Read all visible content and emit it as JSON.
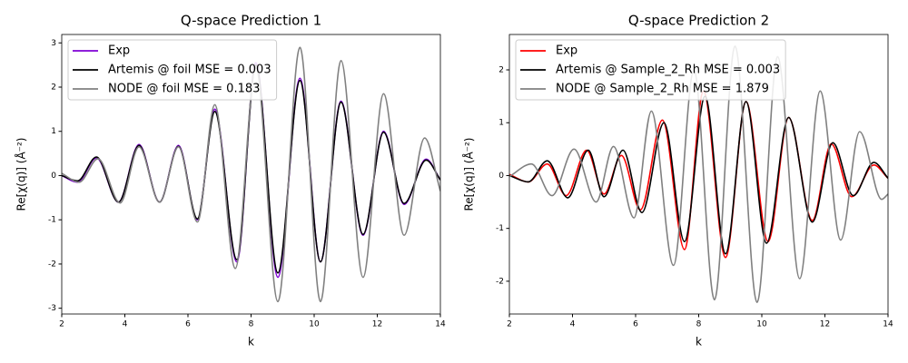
{
  "chart_data": [
    {
      "type": "line",
      "title": "Q-space Prediction 1",
      "x_label": "k",
      "y_label": "Re[χ(q)] (Å⁻²)",
      "xlim": [
        2,
        14
      ],
      "xticks": [
        2,
        4,
        6,
        8,
        10,
        12,
        14
      ],
      "ylim": [
        -3.13,
        3.19
      ],
      "yticks": [
        -3,
        -2,
        -1,
        0,
        1,
        2,
        3
      ],
      "legend": "upper left",
      "series": [
        {
          "name": "Exp",
          "color": "#7f00d4",
          "x": [
            2,
            2.5,
            3.1,
            3.8,
            4.45,
            5.1,
            5.7,
            6.3,
            6.85,
            7.55,
            8.15,
            8.85,
            9.55,
            10.2,
            10.85,
            11.55,
            12.2,
            12.85,
            13.55,
            14
          ],
          "values": [
            0,
            -0.15,
            0.4,
            -0.6,
            0.7,
            -0.6,
            0.68,
            -1.0,
            1.5,
            -1.95,
            2.55,
            -2.3,
            2.2,
            -1.95,
            1.68,
            -1.35,
            1.0,
            -0.65,
            0.37,
            -0.1
          ]
        },
        {
          "name": "Artemis @ foil MSE = 0.003",
          "color": "#000000",
          "x": [
            2,
            2.5,
            3.1,
            3.8,
            4.45,
            5.1,
            5.7,
            6.3,
            6.85,
            7.55,
            8.15,
            8.85,
            9.55,
            10.2,
            10.85,
            11.55,
            12.2,
            12.85,
            13.55,
            14
          ],
          "values": [
            0,
            -0.12,
            0.42,
            -0.6,
            0.68,
            -0.6,
            0.66,
            -0.98,
            1.45,
            -1.9,
            2.5,
            -2.2,
            2.15,
            -1.95,
            1.66,
            -1.33,
            0.98,
            -0.63,
            0.35,
            -0.1
          ]
        },
        {
          "name": "NODE @ foil MSE = 0.183",
          "color": "#808080",
          "x": [
            2,
            2.55,
            3.15,
            3.85,
            4.45,
            5.1,
            5.7,
            6.3,
            6.85,
            7.5,
            8.15,
            8.85,
            9.55,
            10.2,
            10.85,
            11.55,
            12.2,
            12.85,
            13.5,
            14
          ],
          "values": [
            0.05,
            -0.15,
            0.38,
            -0.62,
            0.65,
            -0.6,
            0.65,
            -1.05,
            1.6,
            -2.1,
            2.45,
            -2.85,
            2.9,
            -2.85,
            2.6,
            -2.3,
            1.85,
            -1.35,
            0.85,
            -0.35
          ]
        }
      ]
    },
    {
      "type": "line",
      "title": "Q-space Prediction 2",
      "x_label": "k",
      "y_label": "Re[χ(q)] (Å⁻²)",
      "xlim": [
        2,
        14
      ],
      "xticks": [
        2,
        4,
        6,
        8,
        10,
        12,
        14
      ],
      "ylim": [
        -2.62,
        2.67
      ],
      "yticks": [
        -2,
        -1,
        0,
        1,
        2
      ],
      "legend": "upper left",
      "series": [
        {
          "name": "Exp",
          "color": "#ff0000",
          "x": [
            2,
            2.6,
            3.2,
            3.8,
            4.45,
            5.0,
            5.55,
            6.15,
            6.85,
            7.55,
            8.15,
            8.85,
            9.5,
            10.2,
            10.85,
            11.6,
            12.2,
            12.85,
            13.55,
            14
          ],
          "values": [
            0.02,
            -0.12,
            0.22,
            -0.38,
            0.48,
            -0.35,
            0.38,
            -0.65,
            1.05,
            -1.4,
            1.6,
            -1.55,
            1.4,
            -1.25,
            1.1,
            -0.85,
            0.6,
            -0.4,
            0.2,
            -0.05
          ]
        },
        {
          "name": "Artemis @ Sample_2_Rh MSE = 0.003",
          "color": "#000000",
          "x": [
            2,
            2.6,
            3.2,
            3.85,
            4.5,
            5.0,
            5.6,
            6.2,
            6.9,
            7.55,
            8.2,
            8.85,
            9.5,
            10.15,
            10.85,
            11.6,
            12.25,
            12.9,
            13.55,
            14
          ],
          "values": [
            0,
            -0.12,
            0.28,
            -0.42,
            0.48,
            -0.4,
            0.48,
            -0.7,
            1.0,
            -1.25,
            1.5,
            -1.48,
            1.4,
            -1.28,
            1.1,
            -0.88,
            0.62,
            -0.38,
            0.25,
            -0.05
          ]
        },
        {
          "name": "NODE @ Sample_2_Rh MSE = 1.879",
          "color": "#808080",
          "x": [
            2,
            2.7,
            3.35,
            4.05,
            4.75,
            5.3,
            5.95,
            6.5,
            7.2,
            7.85,
            8.5,
            9.15,
            9.85,
            10.5,
            11.2,
            11.85,
            12.5,
            13.1,
            13.8,
            14
          ],
          "values": [
            -0.02,
            0.22,
            -0.38,
            0.5,
            -0.5,
            0.55,
            -0.8,
            1.22,
            -1.7,
            2.0,
            -2.35,
            2.45,
            -2.4,
            2.25,
            -1.95,
            1.6,
            -1.22,
            0.83,
            -0.45,
            -0.35
          ]
        }
      ]
    }
  ]
}
